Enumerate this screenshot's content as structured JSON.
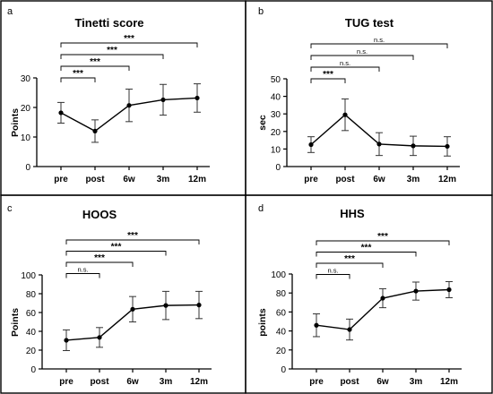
{
  "chart_data": [
    {
      "panel": "a",
      "type": "line",
      "title": "Tinetti score",
      "ylabel": "Points",
      "xlabel": "",
      "categories": [
        "pre",
        "post",
        "6w",
        "3m",
        "12m"
      ],
      "values": [
        18.2,
        12.0,
        20.7,
        22.6,
        23.2
      ],
      "error": [
        3.5,
        3.8,
        5.5,
        5.2,
        4.8
      ],
      "ylim": [
        0,
        30
      ],
      "yticks": [
        0,
        10,
        20,
        30
      ],
      "comparisons": [
        {
          "from": "pre",
          "to": "post",
          "label": "***"
        },
        {
          "from": "pre",
          "to": "6w",
          "label": "***"
        },
        {
          "from": "pre",
          "to": "3m",
          "label": "***"
        },
        {
          "from": "pre",
          "to": "12m",
          "label": "***"
        }
      ]
    },
    {
      "panel": "b",
      "type": "line",
      "title": "TUG test",
      "ylabel": "sec",
      "xlabel": "",
      "categories": [
        "pre",
        "post",
        "6w",
        "3m",
        "12m"
      ],
      "values": [
        12.5,
        29.5,
        12.8,
        11.8,
        11.5
      ],
      "error": [
        4.5,
        9.0,
        6.5,
        5.5,
        5.5
      ],
      "ylim": [
        0,
        50
      ],
      "yticks": [
        0,
        10,
        20,
        30,
        40,
        50
      ],
      "comparisons": [
        {
          "from": "pre",
          "to": "post",
          "label": "***"
        },
        {
          "from": "pre",
          "to": "6w",
          "label": "n.s."
        },
        {
          "from": "pre",
          "to": "3m",
          "label": "n.s."
        },
        {
          "from": "pre",
          "to": "12m",
          "label": "n.s."
        }
      ]
    },
    {
      "panel": "c",
      "type": "line",
      "title": "HOOS",
      "ylabel": "Points",
      "xlabel": "",
      "categories": [
        "pre",
        "post",
        "6w",
        "3m",
        "12m"
      ],
      "values": [
        30.5,
        33.5,
        63.5,
        67.5,
        68.0
      ],
      "error": [
        11.0,
        10.5,
        13.5,
        15.0,
        14.5
      ],
      "ylim": [
        0,
        100
      ],
      "yticks": [
        0,
        20,
        40,
        60,
        80,
        100
      ],
      "comparisons": [
        {
          "from": "pre",
          "to": "post",
          "label": "n.s."
        },
        {
          "from": "pre",
          "to": "6w",
          "label": "***"
        },
        {
          "from": "pre",
          "to": "3m",
          "label": "***"
        },
        {
          "from": "pre",
          "to": "12m",
          "label": "***"
        }
      ]
    },
    {
      "panel": "d",
      "type": "line",
      "title": "HHS",
      "ylabel": "points",
      "xlabel": "",
      "categories": [
        "pre",
        "post",
        "6w",
        "3m",
        "12m"
      ],
      "values": [
        46.0,
        41.5,
        74.5,
        82.0,
        83.5
      ],
      "error": [
        12.0,
        11.0,
        10.0,
        9.5,
        8.5
      ],
      "ylim": [
        0,
        100
      ],
      "yticks": [
        0,
        20,
        40,
        60,
        80,
        100
      ],
      "comparisons": [
        {
          "from": "pre",
          "to": "post",
          "label": "n.s."
        },
        {
          "from": "pre",
          "to": "6w",
          "label": "***"
        },
        {
          "from": "pre",
          "to": "3m",
          "label": "***"
        },
        {
          "from": "pre",
          "to": "12m",
          "label": "***"
        }
      ]
    }
  ]
}
